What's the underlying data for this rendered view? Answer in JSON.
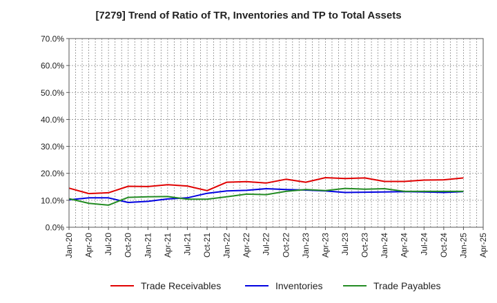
{
  "chart_data": {
    "type": "line",
    "title": "[7279]  Trend of Ratio of TR, Inventories and TP to Total Assets",
    "xlabel": "",
    "ylabel": "",
    "ylim": [
      0,
      70
    ],
    "y_ticks": [
      "0.0%",
      "10.0%",
      "20.0%",
      "30.0%",
      "40.0%",
      "50.0%",
      "60.0%",
      "70.0%"
    ],
    "x_ticks": [
      "Jan-20",
      "Apr-20",
      "Jul-20",
      "Oct-20",
      "Jan-21",
      "Apr-21",
      "Jul-21",
      "Oct-21",
      "Jan-22",
      "Apr-22",
      "Jul-22",
      "Oct-22",
      "Jan-23",
      "Apr-23",
      "Jul-23",
      "Oct-23",
      "Jan-24",
      "Apr-24",
      "Jul-24",
      "Oct-24",
      "Jan-25",
      "Apr-25"
    ],
    "x": [
      "Jan-20",
      "Apr-20",
      "Jul-20",
      "Oct-20",
      "Jan-21",
      "Apr-21",
      "Jul-21",
      "Oct-21",
      "Jan-22",
      "Apr-22",
      "Jul-22",
      "Oct-22",
      "Jan-23",
      "Apr-23",
      "Jul-23",
      "Oct-23",
      "Jan-24",
      "Apr-24",
      "Jul-24",
      "Oct-24",
      "Jan-25"
    ],
    "grid": true,
    "legend_position": "bottom",
    "series": [
      {
        "name": "Trade Receivables",
        "color": "#e00000",
        "values": [
          14.5,
          12.5,
          12.8,
          15.2,
          15.1,
          15.8,
          15.3,
          13.6,
          16.7,
          16.9,
          16.4,
          17.8,
          16.7,
          18.4,
          18.1,
          18.3,
          17.0,
          17.0,
          17.5,
          17.6,
          18.3
        ]
      },
      {
        "name": "Inventories",
        "color": "#0000e0",
        "values": [
          10.2,
          10.9,
          10.9,
          9.2,
          9.6,
          10.5,
          10.9,
          12.6,
          13.5,
          13.7,
          14.3,
          14.0,
          13.8,
          13.5,
          12.9,
          13.0,
          13.1,
          13.2,
          13.1,
          12.9,
          13.2
        ]
      },
      {
        "name": "Trade Payables",
        "color": "#228b22",
        "values": [
          10.6,
          8.9,
          8.2,
          11.1,
          11.3,
          11.4,
          10.4,
          10.4,
          11.3,
          12.3,
          12.1,
          13.3,
          14.0,
          13.6,
          14.4,
          14.1,
          14.3,
          13.3,
          13.3,
          13.3,
          13.3
        ]
      }
    ]
  }
}
